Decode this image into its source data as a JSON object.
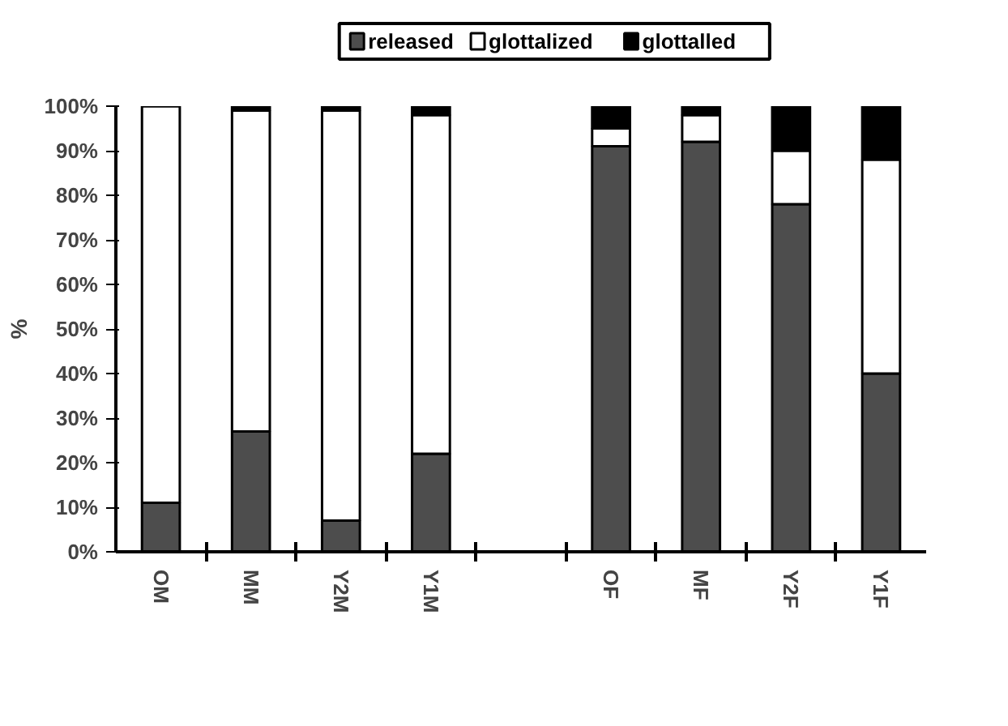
{
  "chart_data": {
    "type": "bar",
    "stacked": true,
    "ylabel": "%",
    "legend": "top",
    "categories": [
      "OM",
      "MM",
      "Y2M",
      "Y1M",
      null,
      "OF",
      "MF",
      "Y2F",
      "Y1F"
    ],
    "series": [
      {
        "name": "released",
        "color": "#4d4d4d",
        "values": [
          11,
          27,
          7,
          22,
          null,
          91,
          92,
          78,
          40
        ]
      },
      {
        "name": "glottalized",
        "color": "#ffffff",
        "values": [
          89,
          72,
          92,
          76,
          null,
          4,
          6,
          12,
          48
        ]
      },
      {
        "name": "glottalled",
        "color": "#000000",
        "values": [
          0,
          1,
          1,
          2,
          null,
          5,
          2,
          10,
          12
        ]
      }
    ],
    "ylim": [
      0,
      100
    ],
    "yticks": [
      {
        "value": 0,
        "label": "0%"
      },
      {
        "value": 10,
        "label": "10%"
      },
      {
        "value": 20,
        "label": "20%"
      },
      {
        "value": 30,
        "label": "30%"
      },
      {
        "value": 40,
        "label": "40%"
      },
      {
        "value": 50,
        "label": "50%"
      },
      {
        "value": 60,
        "label": "60%"
      },
      {
        "value": 70,
        "label": "70%"
      },
      {
        "value": 80,
        "label": "80%"
      },
      {
        "value": 90,
        "label": "90%"
      },
      {
        "value": 100,
        "label": "100%"
      }
    ],
    "grid": false
  }
}
